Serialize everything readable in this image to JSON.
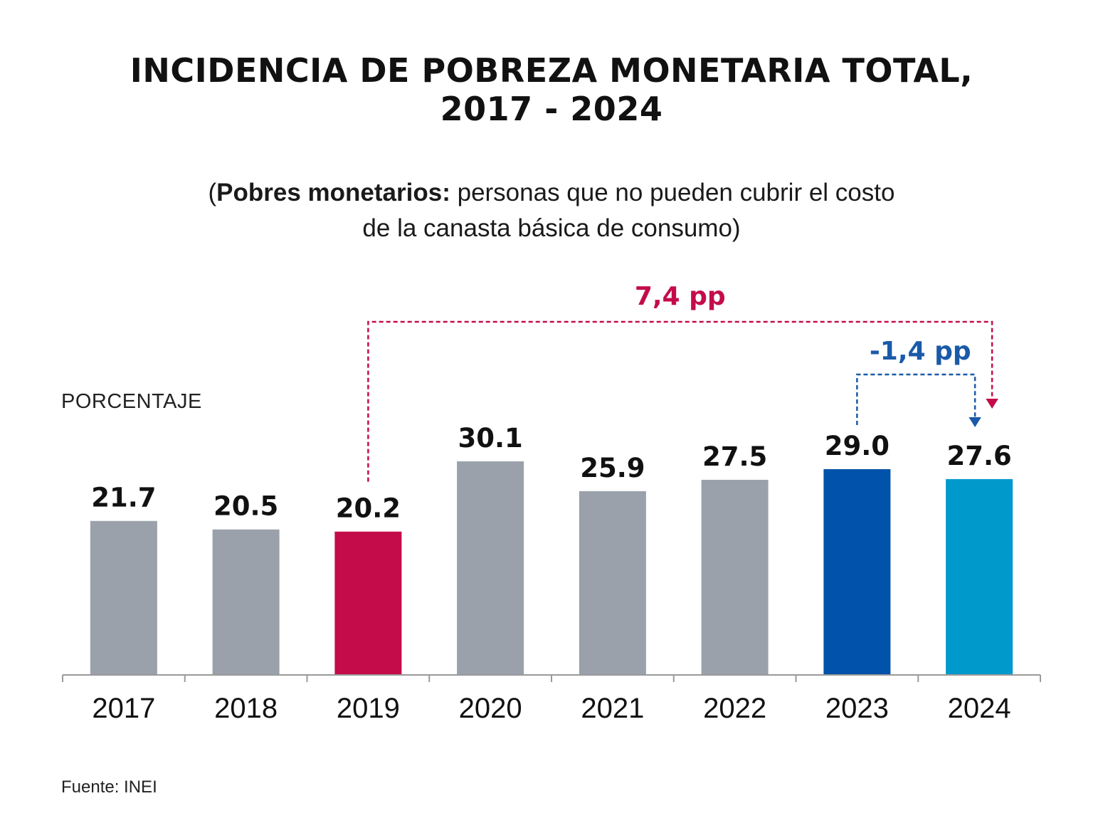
{
  "title": {
    "line1": "INCIDENCIA DE POBREZA MONETARIA TOTAL,",
    "line2": "2017 - 2024"
  },
  "subtitle": {
    "open": "(",
    "bold": "Pobres monetarios:",
    "rest1": " personas que no pueden cubrir el costo",
    "line2": "de la canasta básica de consumo)"
  },
  "ylabel": "PORCENTAJE",
  "source": "Fuente: INEI",
  "colors": {
    "default_bar": "#9aa1ab",
    "bar_2019": "#c40c4a",
    "bar_2023": "#0052aa",
    "bar_2024": "#0099cc",
    "annotation_red": "#c40c4a",
    "annotation_blue": "#1a5aa8",
    "axis": "#9a9a9a"
  },
  "chart_data": {
    "type": "bar",
    "title": "INCIDENCIA DE POBREZA MONETARIA TOTAL, 2017 - 2024",
    "ylabel": "PORCENTAJE",
    "categories": [
      "2017",
      "2018",
      "2019",
      "2020",
      "2021",
      "2022",
      "2023",
      "2024"
    ],
    "values": [
      21.7,
      20.5,
      20.2,
      30.1,
      25.9,
      27.5,
      29.0,
      27.6
    ],
    "value_labels": [
      "21.7",
      "20.5",
      "20.2",
      "30.1",
      "25.9",
      "27.5",
      "29.0",
      "27.6"
    ],
    "bar_colors": [
      "#9aa1ab",
      "#9aa1ab",
      "#c40c4a",
      "#9aa1ab",
      "#9aa1ab",
      "#9aa1ab",
      "#0052aa",
      "#0099cc"
    ],
    "ylim": [
      0,
      30.1
    ],
    "grid": false,
    "annotations": [
      {
        "text": "7,4 pp",
        "from": "2019",
        "to": "2024",
        "color": "#c40c4a"
      },
      {
        "text": "-1,4 pp",
        "from": "2023",
        "to": "2024",
        "color": "#1a5aa8"
      }
    ]
  }
}
